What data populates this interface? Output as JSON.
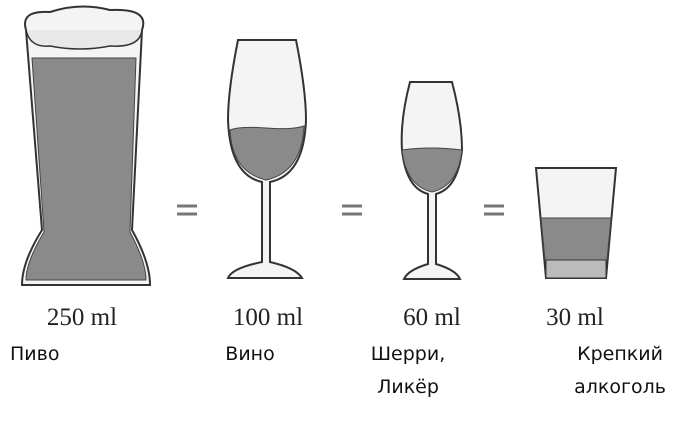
{
  "items": [
    {
      "amount": "250 ml",
      "label": [
        "Пиво"
      ]
    },
    {
      "amount": "100 ml",
      "label": [
        "Вино"
      ]
    },
    {
      "amount": "60 ml",
      "label": [
        "Шерри,",
        "Ликёр"
      ]
    },
    {
      "amount": "30 ml",
      "label": [
        "Крепкий",
        "алкоголь"
      ]
    }
  ]
}
